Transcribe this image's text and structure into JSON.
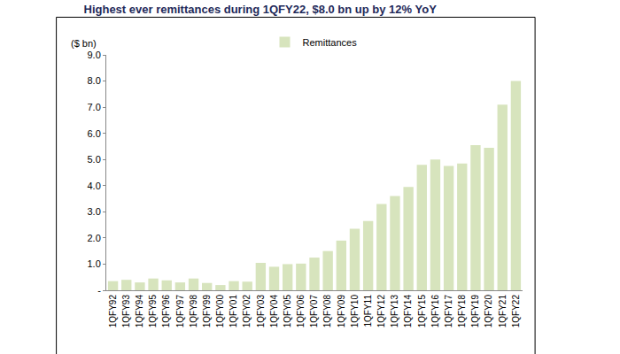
{
  "chart_data": {
    "type": "bar",
    "title": "Highest ever remittances during 1QFY22, $8.0 bn up by 12% YoY",
    "y_label": "($ bn)",
    "categories": [
      "1QFY92",
      "1QFY93",
      "1QFY94",
      "1QFY95",
      "1QFY96",
      "1QFY97",
      "1QFY98",
      "1QFY99",
      "1QFY00",
      "1QFY01",
      "1QFY02",
      "1QFY03",
      "1QFY04",
      "1QFY05",
      "1QFY06",
      "1QFY07",
      "1QFY08",
      "1QFY09",
      "1QFY10",
      "1QFY11",
      "1QFY12",
      "1QFY13",
      "1QFY14",
      "1QFY15",
      "1QFY16",
      "1QFY17",
      "1QFY18",
      "1QFY19",
      "1QFY20",
      "1QFY21",
      "1QFY22"
    ],
    "series": [
      {
        "name": "Remittances",
        "color": "#d7e4bd",
        "values": [
          0.35,
          0.4,
          0.3,
          0.45,
          0.38,
          0.3,
          0.45,
          0.28,
          0.2,
          0.35,
          0.33,
          1.05,
          0.9,
          1.0,
          1.02,
          1.25,
          1.5,
          1.9,
          2.35,
          2.65,
          3.3,
          3.6,
          3.95,
          4.8,
          5.0,
          4.75,
          4.85,
          5.55,
          5.45,
          7.1,
          8.0
        ]
      }
    ],
    "ylim": [
      0,
      9
    ],
    "yticks": [
      {
        "value": 0,
        "label": "-"
      },
      {
        "value": 1,
        "label": "1.0"
      },
      {
        "value": 2,
        "label": "2.0"
      },
      {
        "value": 3,
        "label": "3.0"
      },
      {
        "value": 4,
        "label": "4.0"
      },
      {
        "value": 5,
        "label": "5.0"
      },
      {
        "value": 6,
        "label": "6.0"
      },
      {
        "value": 7,
        "label": "7.0"
      },
      {
        "value": 8,
        "label": "8.0"
      },
      {
        "value": 9,
        "label": "9.0"
      }
    ],
    "grid": false,
    "legend": "top"
  }
}
